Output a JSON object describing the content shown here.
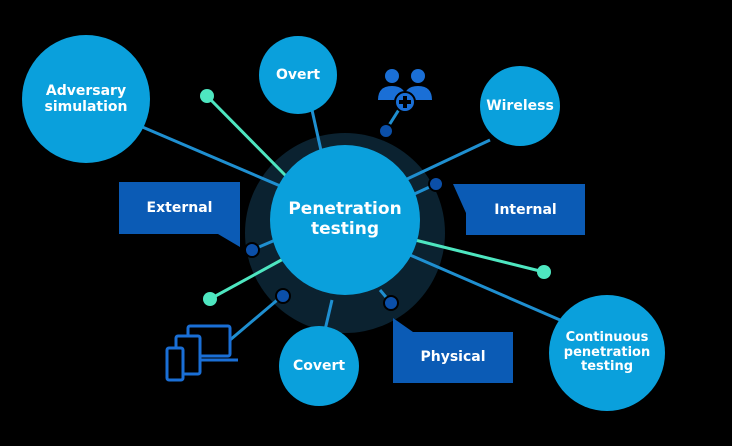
{
  "diagram": {
    "center": {
      "label": "Penetration testing"
    },
    "circles": [
      {
        "id": "adversary",
        "label": "Adversary simulation"
      },
      {
        "id": "overt",
        "label": "Overt"
      },
      {
        "id": "wireless",
        "label": "Wireless"
      },
      {
        "id": "covert",
        "label": "Covert"
      },
      {
        "id": "continuous",
        "label": "Continuous penetration testing"
      }
    ],
    "callouts": [
      {
        "id": "external",
        "label": "External"
      },
      {
        "id": "internal",
        "label": "Internal"
      },
      {
        "id": "physical",
        "label": "Physical"
      }
    ],
    "icons": [
      "people-add-icon",
      "devices-icon"
    ]
  },
  "colors": {
    "background": "#000000",
    "circle": "#0aa0dc",
    "callout": "#0b5bb5",
    "halo": "#0b2230",
    "line": "#1f8fd0",
    "teal": "#4ee6c0",
    "dot": "#0b4fa8"
  }
}
